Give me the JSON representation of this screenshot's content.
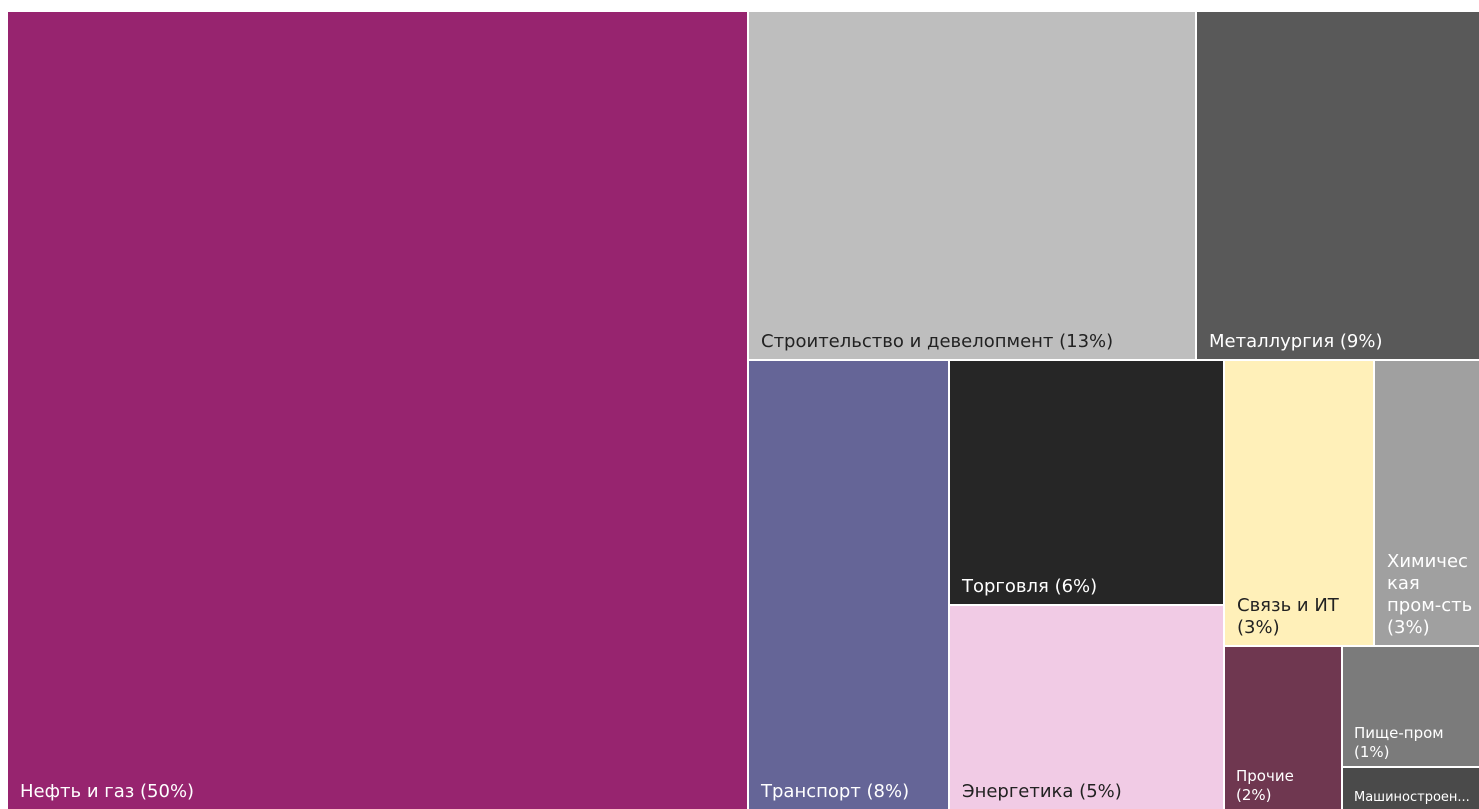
{
  "chart_data": {
    "type": "treemap",
    "unit": "%",
    "items": [
      {
        "name": "Нефть и газ",
        "value": 50,
        "label": "Нефть и газ (50%)",
        "color": "#97246f",
        "text_color": "#ffffff"
      },
      {
        "name": "Строительство и девелопмент",
        "value": 13,
        "label": "Строительство и девелопмент (13%)",
        "color": "#bebebe",
        "text_color": "#222222"
      },
      {
        "name": "Металлургия",
        "value": 9,
        "label": "Металлургия (9%)",
        "color": "#595959",
        "text_color": "#ffffff"
      },
      {
        "name": "Транспорт",
        "value": 8,
        "label": "Транспорт (8%)",
        "color": "#656597",
        "text_color": "#ffffff"
      },
      {
        "name": "Торговля",
        "value": 6,
        "label": "Торговля (6%)",
        "color": "#262626",
        "text_color": "#ffffff"
      },
      {
        "name": "Энергетика",
        "value": 5,
        "label": "Энергетика (5%)",
        "color": "#f1cbe5",
        "text_color": "#222222"
      },
      {
        "name": "Связь и ИТ",
        "value": 3,
        "label": "Связь и ИТ\n(3%)",
        "color": "#fff0b9",
        "text_color": "#222222"
      },
      {
        "name": "Химическая пром-сть",
        "value": 3,
        "label": "Химичес\nкая\nпром-сть\n(3%)",
        "color": "#a0a0a0",
        "text_color": "#ffffff"
      },
      {
        "name": "Прочие",
        "value": 2,
        "label": "Прочие\n(2%)",
        "color": "#6f3750",
        "text_color": "#ffffff"
      },
      {
        "name": "Пище-пром",
        "value": 1,
        "label": "Пище-пром\n(1%)",
        "color": "#7b7b7b",
        "text_color": "#ffffff"
      },
      {
        "name": "Машиностроение",
        "value": 0,
        "label": "Машиностроен...",
        "color": "#4a4a4a",
        "text_color": "#ffffff"
      }
    ]
  }
}
